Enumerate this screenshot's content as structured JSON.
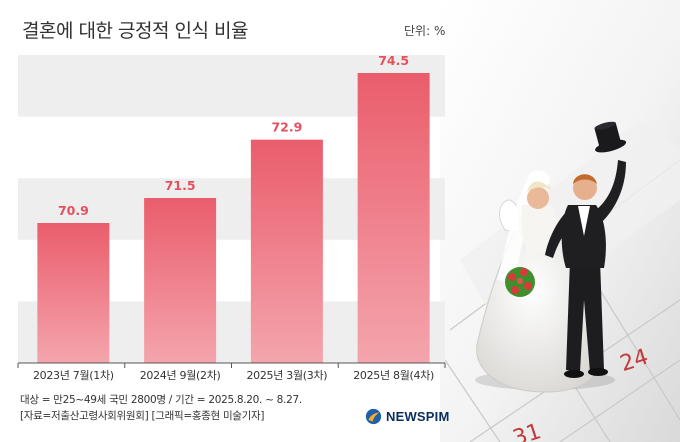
{
  "header": {
    "title": "결혼에 대한 긍정적 인식 비율",
    "unit": "단위: %"
  },
  "chart_data": {
    "type": "bar",
    "title": "결혼에 대한 긍정적 인식 비율",
    "categories": [
      "2023년 7월(1차)",
      "2024년 9월(2차)",
      "2025년 3월(3차)",
      "2025년 8월(4차)"
    ],
    "values": [
      70.9,
      71.5,
      72.9,
      74.5
    ],
    "data_labels": [
      "70.9",
      "71.5",
      "72.9",
      "74.5"
    ],
    "xlabel": "",
    "ylabel": "",
    "grid": "alternating horizontal bands",
    "bar_color_top": "#ea5d6c",
    "bar_color_bottom": "#f4a5ad",
    "label_color": "#e5505f"
  },
  "footer": {
    "note1": "대상 = 만25~49세 국민 2800명 / 기간 = 2025.8.20. ~ 8.27.",
    "note2": "[자료=저출산고령사회위원회] [그래픽=홍종현 미술기자]",
    "logo_text": "NEWSPIM",
    "logo_icon": "newspim-logo-icon"
  },
  "photo": {
    "icon": "wedding-couple-figurine-on-calendar-image",
    "calendar_dates": [
      "24",
      "31"
    ]
  }
}
